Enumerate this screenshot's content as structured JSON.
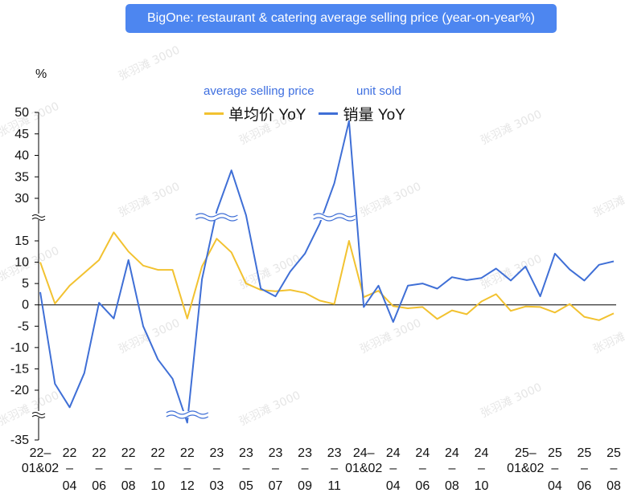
{
  "title": "BigOne: restaurant & catering average selling price (year-on-year%)",
  "unit_label": "%",
  "watermark": "张羽滩 3000",
  "annotations": {
    "asp": "average selling price",
    "units": "unit sold"
  },
  "colors": {
    "asp": "#f2c230",
    "units": "#3f6fd6",
    "title_bg": "#4d86f0",
    "annotation": "#3e6fe0",
    "axis": "#000000"
  },
  "chart_data": {
    "type": "line",
    "ylabel": "%",
    "y_break": {
      "lower_range": [
        -20,
        15
      ],
      "upper_range": [
        30,
        50
      ],
      "bottom_tick": -35
    },
    "y_ticks_upper": [
      30,
      35,
      40,
      45,
      50
    ],
    "y_ticks_lower": [
      -20,
      -15,
      -10,
      -5,
      0,
      5,
      10,
      15
    ],
    "y_tick_bottom": -35,
    "x": [
      "22-01&02",
      "22-03",
      "22-04",
      "22-05",
      "22-06",
      "22-07",
      "22-08",
      "22-09",
      "22-10",
      "22-11",
      "22-12",
      "23-01&02",
      "23-03",
      "23-04",
      "23-05",
      "23-06",
      "23-07",
      "23-08",
      "23-09",
      "23-10",
      "23-11",
      "23-12",
      "24-01&02",
      "24-03",
      "24-04",
      "24-05",
      "24-06",
      "24-07",
      "24-08",
      "24-09",
      "24-10",
      "24-11",
      "24-12",
      "25-01&02",
      "25-03",
      "25-04",
      "25-05",
      "25-06",
      "25-07",
      "25-08"
    ],
    "x_tick_labels": [
      {
        "i": 0,
        "l1": "22–",
        "l2": "01&02",
        "l3": ""
      },
      {
        "i": 2,
        "l1": "22",
        "l2": "–",
        "l3": "04"
      },
      {
        "i": 4,
        "l1": "22",
        "l2": "–",
        "l3": "06"
      },
      {
        "i": 6,
        "l1": "22",
        "l2": "–",
        "l3": "08"
      },
      {
        "i": 8,
        "l1": "22",
        "l2": "–",
        "l3": "10"
      },
      {
        "i": 10,
        "l1": "22",
        "l2": "–",
        "l3": "12"
      },
      {
        "i": 12,
        "l1": "23",
        "l2": "–",
        "l3": "03"
      },
      {
        "i": 14,
        "l1": "23",
        "l2": "–",
        "l3": "05"
      },
      {
        "i": 16,
        "l1": "23",
        "l2": "–",
        "l3": "07"
      },
      {
        "i": 18,
        "l1": "23",
        "l2": "–",
        "l3": "09"
      },
      {
        "i": 20,
        "l1": "23",
        "l2": "–",
        "l3": "11"
      },
      {
        "i": 22,
        "l1": "24–",
        "l2": "01&02",
        "l3": ""
      },
      {
        "i": 24,
        "l1": "24",
        "l2": "–",
        "l3": "04"
      },
      {
        "i": 26,
        "l1": "24",
        "l2": "–",
        "l3": "06"
      },
      {
        "i": 28,
        "l1": "24",
        "l2": "–",
        "l3": "08"
      },
      {
        "i": 30,
        "l1": "24",
        "l2": "–",
        "l3": "10"
      },
      {
        "i": 33,
        "l1": "25–",
        "l2": "01&02",
        "l3": ""
      },
      {
        "i": 35,
        "l1": "25",
        "l2": "–",
        "l3": "04"
      },
      {
        "i": 37,
        "l1": "25",
        "l2": "–",
        "l3": "06"
      },
      {
        "i": 39,
        "l1": "25",
        "l2": "–",
        "l3": "08"
      }
    ],
    "series": [
      {
        "name": "单均价 YoY",
        "color": "#f2c230",
        "values": [
          10,
          0.3,
          4.5,
          7.5,
          10.5,
          17,
          12.5,
          9.2,
          8.2,
          8.2,
          -3.2,
          9,
          15.5,
          12.3,
          5,
          3.5,
          3.2,
          3.5,
          2.8,
          1,
          0.2,
          15,
          1.8,
          3.3,
          -0.3,
          -0.8,
          -0.5,
          -3.3,
          -1.3,
          -2.2,
          0.8,
          2.5,
          -1.4,
          -0.4,
          -0.5,
          -1.8,
          0.2,
          -2.8,
          -3.6,
          -2
        ]
      },
      {
        "name": "销量 YoY",
        "color": "#3f6fd6",
        "values": [
          3,
          -18.5,
          -24,
          -16,
          0.5,
          -3.2,
          10.5,
          -5,
          -12.8,
          -17.3,
          -35,
          6,
          27,
          36.5,
          21,
          3.8,
          2,
          7.8,
          12,
          19,
          33.5,
          48,
          -0.5,
          4.5,
          -4,
          4.5,
          5,
          3.8,
          6.5,
          5.8,
          6.3,
          8.5,
          5.7,
          9,
          2,
          12,
          8.3,
          5.7,
          9.4,
          10.2
        ]
      }
    ]
  }
}
